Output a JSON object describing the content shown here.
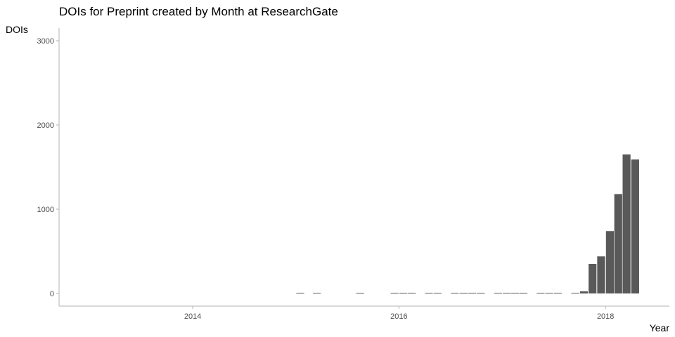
{
  "chart_data": {
    "type": "bar",
    "title": "DOIs for Preprint created by Month at ResearchGate",
    "xlabel": "Year",
    "ylabel": "DOIs",
    "xlim": [
      "2012-09-15",
      "2018-08-15"
    ],
    "ylim": [
      -150,
      3150
    ],
    "x_ticks": [
      "2014-01-01",
      "2016-01-01",
      "2018-01-01"
    ],
    "x_tick_labels": [
      "2014",
      "2016",
      "2018"
    ],
    "y_ticks": [
      0,
      1000,
      2000,
      3000
    ],
    "y_tick_labels": [
      "0",
      "1000",
      "2000",
      "3000"
    ],
    "grid": false,
    "bar_color": "#595959",
    "series": [
      {
        "x": [
          "2015-01",
          "2015-03",
          "2015-08",
          "2015-12",
          "2016-01",
          "2016-02",
          "2016-04",
          "2016-05",
          "2016-07",
          "2016-08",
          "2016-09",
          "2016-10",
          "2016-12",
          "2017-01",
          "2017-02",
          "2017-03",
          "2017-05",
          "2017-06",
          "2017-07",
          "2017-09",
          "2017-10",
          "2017-11",
          "2017-12",
          "2018-01",
          "2018-02",
          "2018-03",
          "2018-04"
        ],
        "values": [
          1,
          1,
          1,
          1,
          1,
          1,
          1,
          1,
          1,
          1,
          1,
          1,
          1,
          1,
          1,
          1,
          1,
          1,
          1,
          2,
          25,
          350,
          440,
          740,
          1180,
          1650,
          1590
        ]
      }
    ]
  }
}
